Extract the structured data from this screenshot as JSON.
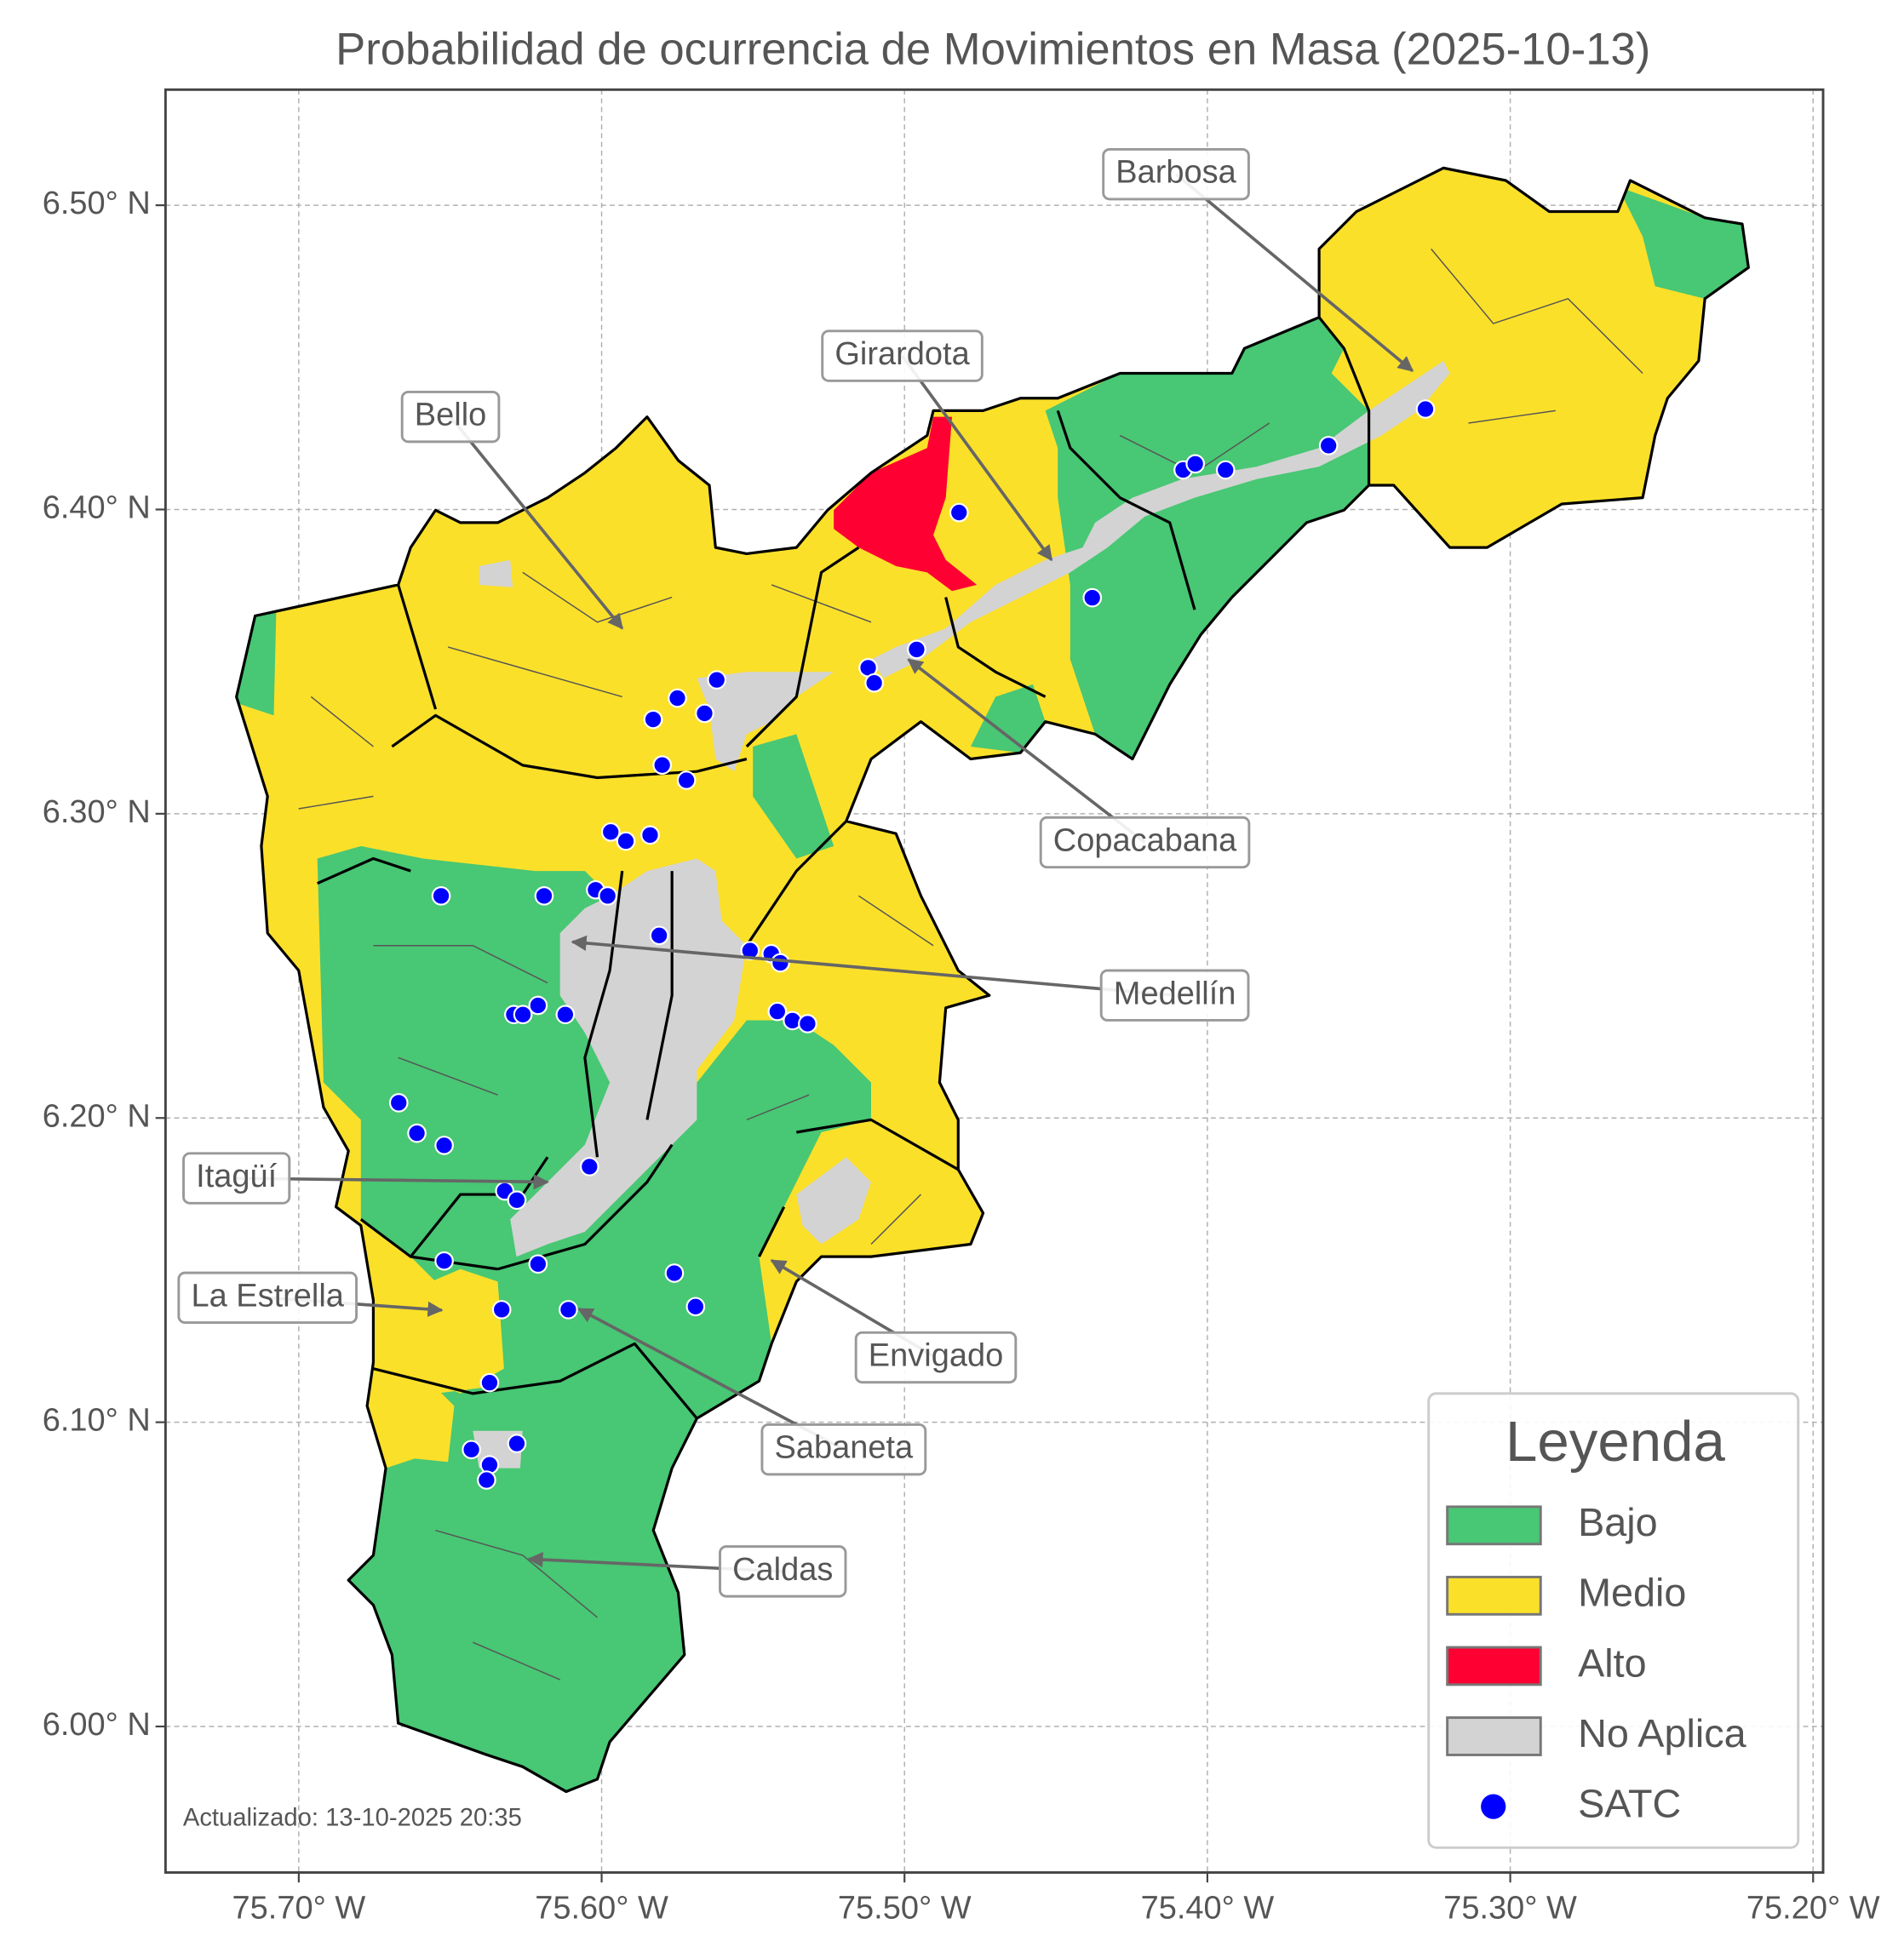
{
  "title": "Probabilidad de ocurrencia de Movimientos en Masa (2025-10-13)",
  "updated": "Actualizado: 13-10-2025 20:35",
  "axes": {
    "xlim": [
      -75.744,
      -75.1967
    ],
    "ylim": [
      5.952,
      6.538
    ],
    "grid": true,
    "xticks": [
      {
        "value": -75.7,
        "label": "75.70° W"
      },
      {
        "value": -75.6,
        "label": "75.60° W"
      },
      {
        "value": -75.5,
        "label": "75.50° W"
      },
      {
        "value": -75.4,
        "label": "75.40° W"
      },
      {
        "value": -75.3,
        "label": "75.30° W"
      },
      {
        "value": -75.2,
        "label": "75.20° W"
      }
    ],
    "yticks": [
      {
        "value": 6.0,
        "label": "6.00° N"
      },
      {
        "value": 6.1,
        "label": "6.10° N"
      },
      {
        "value": 6.2,
        "label": "6.20° N"
      },
      {
        "value": 6.3,
        "label": "6.30° N"
      },
      {
        "value": 6.4,
        "label": "6.40° N"
      },
      {
        "value": 6.5,
        "label": "6.50° N"
      }
    ]
  },
  "annotations": [
    "Barbosa",
    "Girardota",
    "Bello",
    "Copacabana",
    "Medellín",
    "Itagüí",
    "La Estrella",
    "Envigado",
    "Sabaneta",
    "Caldas"
  ],
  "legend": {
    "title": "Leyenda",
    "levels": [
      {
        "name": "Bajo",
        "color": "#48c774"
      },
      {
        "name": "Medio",
        "color": "#fbe02a"
      },
      {
        "name": "Alto",
        "color": "#ff0033"
      },
      {
        "name": "No Aplica",
        "color": "#d3d3d3"
      }
    ]
  },
  "stations": {
    "name": "SATC",
    "color": "#0000ff",
    "lon": [
      -75.482,
      -75.408,
      -75.404,
      -75.394,
      -75.36,
      -75.328,
      -75.438,
      -75.496,
      -75.512,
      -75.51,
      -75.562,
      -75.575,
      -75.583,
      -75.566,
      -75.58,
      -75.572,
      -75.597,
      -75.592,
      -75.584,
      -75.653,
      -75.619,
      -75.602,
      -75.598,
      -75.581,
      -75.551,
      -75.544,
      -75.541,
      -75.542,
      -75.537,
      -75.532,
      -75.621,
      -75.629,
      -75.626,
      -75.612,
      -75.667,
      -75.661,
      -75.652,
      -75.604,
      -75.632,
      -75.628,
      -75.652,
      -75.621,
      -75.576,
      -75.569,
      -75.633,
      -75.611,
      -75.637,
      -75.643,
      -75.628,
      -75.637,
      -75.638
    ],
    "lat": [
      6.399,
      6.413,
      6.415,
      6.413,
      6.421,
      6.433,
      6.371,
      6.354,
      6.348,
      6.343,
      6.344,
      6.338,
      6.331,
      6.333,
      6.316,
      6.311,
      6.294,
      6.291,
      6.293,
      6.273,
      6.273,
      6.275,
      6.273,
      6.26,
      6.255,
      6.254,
      6.251,
      6.235,
      6.232,
      6.231,
      6.237,
      6.234,
      6.234,
      6.234,
      6.205,
      6.195,
      6.191,
      6.184,
      6.176,
      6.173,
      6.153,
      6.152,
      6.149,
      6.138,
      6.137,
      6.137,
      6.113,
      6.091,
      6.093,
      6.086,
      6.081
    ]
  }
}
